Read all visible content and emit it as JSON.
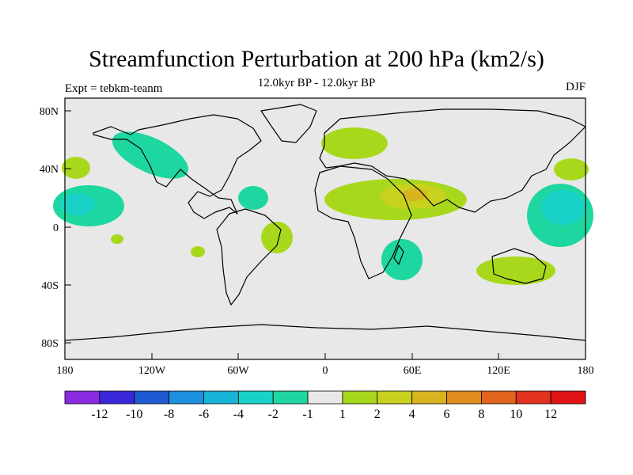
{
  "header": {
    "title": "Streamfunction Perturbation at 200 hPa (km2/s)",
    "subtitle": "12.0kyr BP - 12.0kyr BP",
    "experiment": "Expt = tebkm-teanm",
    "season": "DJF"
  },
  "map": {
    "lat_labels": [
      "80N",
      "40N",
      "0",
      "40S",
      "80S"
    ],
    "lon_labels": [
      "180",
      "120W",
      "60W",
      "0",
      "60E",
      "120E",
      "180"
    ],
    "colors": {
      "background": "#e8e8e8",
      "neg1": "#1ed7a0",
      "neg2": "#18d2c8",
      "pos1": "#a8d81c",
      "pos2": "#c8d21e",
      "pos3": "#d8b41e"
    }
  },
  "colorbar": {
    "labels": [
      "-12",
      "-10",
      "-8",
      "-6",
      "-4",
      "-2",
      "-1",
      "1",
      "2",
      "4",
      "6",
      "8",
      "10",
      "12"
    ],
    "colors": [
      "#8a2be2",
      "#3a28d8",
      "#1e5ad2",
      "#1e90e0",
      "#18b4d8",
      "#18d2c8",
      "#1ed7a0",
      "#e8e8e8",
      "#a8d81c",
      "#c8d21e",
      "#d8b41e",
      "#e08c1e",
      "#e0641e",
      "#e0321e",
      "#e01414"
    ]
  }
}
